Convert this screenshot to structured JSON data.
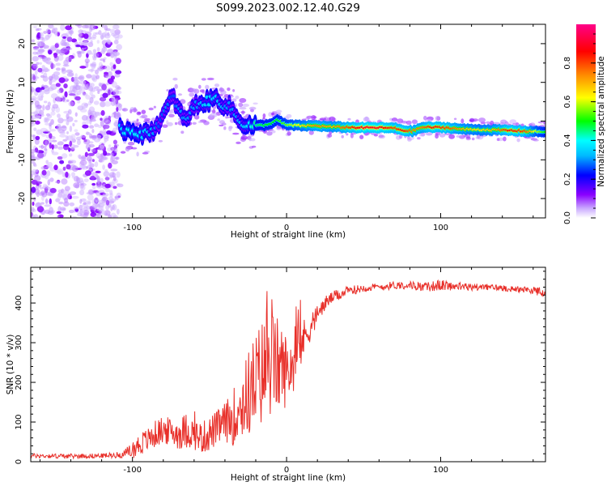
{
  "title": "S099.2023.002.12.40.G29",
  "chart_data": [
    {
      "type": "heatmap",
      "name": "spectrogram",
      "xlabel": "Height of straight line (km)",
      "ylabel": "Frequency (Hz)",
      "xlim": [
        -166,
        168
      ],
      "ylim": [
        -25,
        25
      ],
      "xticks": [
        -100,
        0,
        100
      ],
      "yticks": [
        -20,
        -10,
        0,
        10,
        20
      ],
      "colorbar": {
        "label": "Normalized spectral amplitude",
        "range": [
          0,
          1
        ],
        "ticks": [
          0.0,
          0.2,
          0.4,
          0.6,
          0.8
        ]
      },
      "colors": [
        "#ffffff",
        "#8a00ff",
        "#0000ff",
        "#00ffff",
        "#00ff00",
        "#ffff00",
        "#ff8800",
        "#ff0000",
        "#ff0088"
      ],
      "noise_region_x": [
        -166,
        -108
      ],
      "ridge": [
        {
          "x": -108,
          "y": -2.2,
          "a": 0.35
        },
        {
          "x": -100,
          "y": -2.4,
          "a": 0.4
        },
        {
          "x": -92,
          "y": -3.5,
          "a": 0.35
        },
        {
          "x": -86,
          "y": -2.0,
          "a": 0.3
        },
        {
          "x": -82,
          "y": 0.0,
          "a": 0.25
        },
        {
          "x": -78,
          "y": 3.0,
          "a": 0.3
        },
        {
          "x": -74,
          "y": 6.5,
          "a": 0.25
        },
        {
          "x": -70,
          "y": 3.0,
          "a": 0.3
        },
        {
          "x": -66,
          "y": 0.0,
          "a": 0.3
        },
        {
          "x": -62,
          "y": 2.5,
          "a": 0.3
        },
        {
          "x": -58,
          "y": 4.5,
          "a": 0.3
        },
        {
          "x": -52,
          "y": 5.0,
          "a": 0.35
        },
        {
          "x": -46,
          "y": 6.0,
          "a": 0.35
        },
        {
          "x": -40,
          "y": 4.0,
          "a": 0.3
        },
        {
          "x": -36,
          "y": 3.5,
          "a": 0.3
        },
        {
          "x": -32,
          "y": 0.5,
          "a": 0.3
        },
        {
          "x": -26,
          "y": -1.0,
          "a": 0.35
        },
        {
          "x": -20,
          "y": -1.2,
          "a": 0.45
        },
        {
          "x": -12,
          "y": -1.0,
          "a": 0.5
        },
        {
          "x": -6,
          "y": 0.3,
          "a": 0.5
        },
        {
          "x": 0,
          "y": -1.0,
          "a": 0.55
        },
        {
          "x": 10,
          "y": -1.2,
          "a": 0.65
        },
        {
          "x": 20,
          "y": -1.2,
          "a": 0.75
        },
        {
          "x": 30,
          "y": -1.5,
          "a": 0.7
        },
        {
          "x": 40,
          "y": -1.6,
          "a": 0.8
        },
        {
          "x": 50,
          "y": -1.7,
          "a": 0.9
        },
        {
          "x": 60,
          "y": -1.7,
          "a": 0.9
        },
        {
          "x": 70,
          "y": -1.8,
          "a": 0.8
        },
        {
          "x": 76,
          "y": -2.4,
          "a": 0.85
        },
        {
          "x": 82,
          "y": -2.6,
          "a": 0.75
        },
        {
          "x": 88,
          "y": -1.6,
          "a": 0.75
        },
        {
          "x": 95,
          "y": -1.6,
          "a": 0.85
        },
        {
          "x": 105,
          "y": -1.7,
          "a": 0.8
        },
        {
          "x": 115,
          "y": -2.1,
          "a": 0.7
        },
        {
          "x": 125,
          "y": -2.2,
          "a": 0.65
        },
        {
          "x": 135,
          "y": -2.3,
          "a": 0.7
        },
        {
          "x": 145,
          "y": -2.4,
          "a": 0.85
        },
        {
          "x": 155,
          "y": -2.6,
          "a": 0.8
        },
        {
          "x": 162,
          "y": -2.7,
          "a": 0.6
        },
        {
          "x": 168,
          "y": -2.8,
          "a": 0.5
        }
      ]
    },
    {
      "type": "line",
      "name": "snr",
      "xlabel": "Height of straight line (km)",
      "ylabel": "SNR (10 * v/v)",
      "xlim": [
        -166,
        168
      ],
      "ylim": [
        0,
        490
      ],
      "xticks": [
        -100,
        0,
        100
      ],
      "yticks": [
        0,
        100,
        200,
        300,
        400
      ],
      "series": [
        {
          "name": "SNR",
          "color": "#e8302a",
          "x": [
            -166,
            -140,
            -120,
            -106,
            -100,
            -95,
            -90,
            -85,
            -80,
            -75,
            -70,
            -65,
            -60,
            -55,
            -50,
            -45,
            -40,
            -35,
            -30,
            -25,
            -20,
            -15,
            -12,
            -10,
            -5,
            0,
            5,
            10,
            15,
            20,
            25,
            30,
            40,
            50,
            60,
            70,
            80,
            90,
            100,
            110,
            120,
            130,
            140,
            150,
            160,
            168
          ],
          "y": [
            15,
            14,
            15,
            18,
            30,
            45,
            55,
            70,
            80,
            75,
            70,
            80,
            70,
            60,
            70,
            85,
            100,
            110,
            140,
            170,
            200,
            230,
            260,
            250,
            240,
            230,
            250,
            300,
            340,
            370,
            400,
            415,
            430,
            438,
            440,
            445,
            445,
            440,
            445,
            442,
            440,
            440,
            438,
            435,
            432,
            425
          ],
          "noise": [
            6,
            6,
            6,
            8,
            22,
            30,
            30,
            35,
            35,
            35,
            40,
            45,
            40,
            40,
            45,
            45,
            50,
            70,
            90,
            110,
            130,
            140,
            160,
            140,
            120,
            90,
            70,
            55,
            40,
            25,
            18,
            15,
            12,
            10,
            10,
            10,
            10,
            12,
            14,
            10,
            10,
            8,
            8,
            8,
            10,
            12
          ]
        }
      ]
    }
  ]
}
